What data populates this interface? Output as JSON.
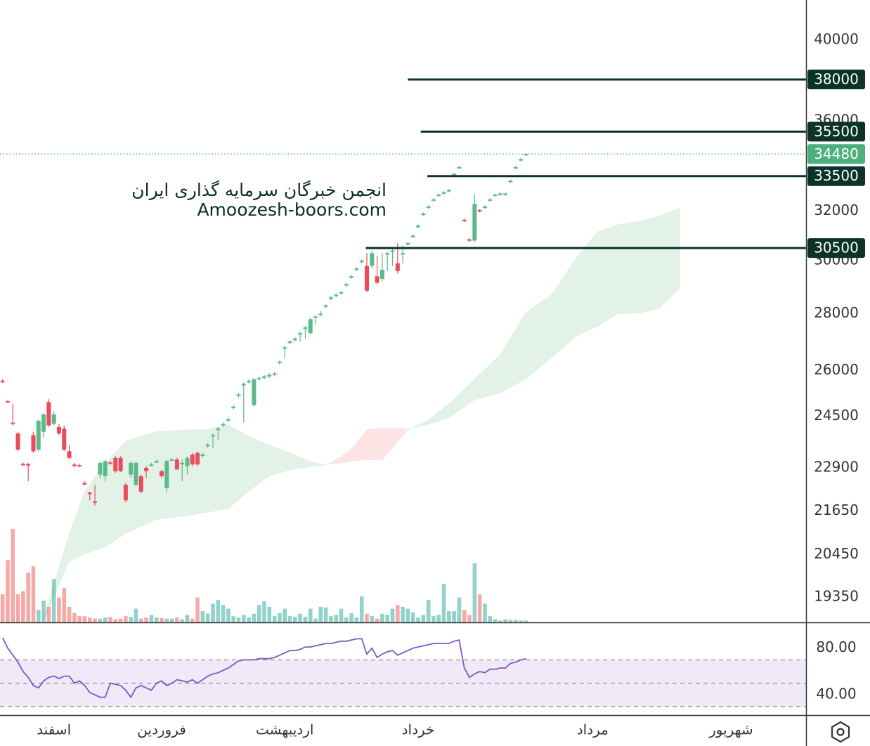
{
  "chart_data": {
    "type": "candlestick",
    "xlim": [
      -0.5,
      156.6
    ],
    "xticks": [
      {
        "value": 10,
        "label": "اسفند"
      },
      {
        "value": 31,
        "label": "فروردین"
      },
      {
        "value": 55,
        "label": "اردیبهشت"
      },
      {
        "value": 81,
        "label": "خرداد"
      },
      {
        "value": 115,
        "label": "مرداد"
      },
      {
        "value": 142,
        "label": "شهریور"
      }
    ],
    "ylim": [
      18720,
      42150
    ],
    "log_scale": true,
    "yticks": [
      19350,
      20450,
      21650,
      22900,
      24500,
      26000,
      28000,
      30000,
      32000,
      36000,
      40000
    ],
    "up_color": "#5bb98b",
    "down_color": "#ea4c5b",
    "ohlc": [
      [
        25650,
        25700,
        25580,
        25620
      ],
      [
        24980,
        25020,
        24920,
        24950
      ],
      [
        24290,
        24900,
        24200,
        24260
      ],
      [
        23950,
        24000,
        23400,
        23450
      ],
      [
        23020,
        23060,
        22950,
        23000
      ],
      [
        23010,
        23050,
        22500,
        22990
      ],
      [
        23900,
        24000,
        23350,
        23400
      ],
      [
        23450,
        24400,
        23400,
        24350
      ],
      [
        24000,
        24600,
        23800,
        24550
      ],
      [
        24950,
        25050,
        24150,
        24200
      ],
      [
        24250,
        24650,
        24200,
        24550
      ],
      [
        24150,
        24250,
        23900,
        23950
      ],
      [
        24100,
        24200,
        23400,
        23450
      ],
      [
        23400,
        23600,
        23150,
        23200
      ],
      [
        23000,
        23050,
        22900,
        22960
      ],
      [
        22980,
        23020,
        22920,
        22950
      ],
      [
        22450,
        22500,
        22380,
        22420
      ],
      [
        22170,
        22200,
        21950,
        22150
      ],
      [
        21920,
        22400,
        21800,
        21900
      ],
      [
        22700,
        23100,
        22600,
        23050
      ],
      [
        22650,
        23150,
        22500,
        23100
      ],
      [
        23060,
        23100,
        23000,
        23050
      ],
      [
        23200,
        23250,
        22750,
        22800
      ],
      [
        23200,
        23250,
        22780,
        22800
      ],
      [
        22400,
        22450,
        21900,
        21950
      ],
      [
        22700,
        23100,
        22600,
        23050
      ],
      [
        22400,
        23100,
        22350,
        23050
      ],
      [
        22650,
        22700,
        22150,
        22200
      ],
      [
        22900,
        22950,
        22600,
        22800
      ],
      [
        23000,
        23050,
        22950,
        23000
      ],
      [
        23100,
        23150,
        23050,
        23100
      ],
      [
        22800,
        22850,
        22600,
        22650
      ],
      [
        22300,
        23150,
        22200,
        23100
      ],
      [
        23150,
        23200,
        23100,
        23150
      ],
      [
        23150,
        23200,
        22850,
        22850
      ],
      [
        23000,
        23150,
        22500,
        23050
      ],
      [
        22950,
        23250,
        22700,
        23200
      ],
      [
        23300,
        23350,
        22950,
        23000
      ],
      [
        23350,
        23400,
        22950,
        23000
      ],
      [
        23280,
        23350,
        23200,
        23300
      ],
      [
        23580,
        23650,
        23500,
        23600
      ],
      [
        23880,
        23950,
        23500,
        23900
      ],
      [
        24080,
        24150,
        23750,
        24100
      ],
      [
        24230,
        24300,
        24150,
        24250
      ],
      [
        24380,
        24450,
        24300,
        24400
      ],
      [
        24780,
        24850,
        24700,
        24800
      ],
      [
        25180,
        25250,
        25100,
        25200
      ],
      [
        25530,
        25600,
        24300,
        25550
      ],
      [
        25630,
        25700,
        25550,
        25650
      ],
      [
        24850,
        25750,
        24800,
        25700
      ],
      [
        25730,
        25800,
        25650,
        25750
      ],
      [
        25780,
        25850,
        25700,
        25800
      ],
      [
        25830,
        25900,
        25750,
        25850
      ],
      [
        25880,
        25950,
        25800,
        25900
      ],
      [
        26280,
        26350,
        26200,
        26300
      ],
      [
        26780,
        26850,
        26400,
        26800
      ],
      [
        26980,
        27050,
        26900,
        27000
      ],
      [
        27080,
        27150,
        27000,
        27100
      ],
      [
        27280,
        27350,
        27000,
        27300
      ],
      [
        27480,
        27550,
        27100,
        27500
      ],
      [
        27300,
        27850,
        27250,
        27800
      ],
      [
        27880,
        27950,
        27600,
        27900
      ],
      [
        27980,
        28100,
        27900,
        28000
      ],
      [
        28280,
        28350,
        28200,
        28300
      ],
      [
        28580,
        28650,
        28500,
        28600
      ],
      [
        28680,
        28750,
        28600,
        28700
      ],
      [
        28780,
        28850,
        28700,
        28800
      ],
      [
        29080,
        29150,
        29000,
        29100
      ],
      [
        29380,
        29450,
        29300,
        29400
      ],
      [
        29680,
        29750,
        29600,
        29700
      ],
      [
        29980,
        30050,
        29900,
        30000
      ],
      [
        29800,
        30300,
        28800,
        28850
      ],
      [
        29800,
        30400,
        29700,
        30300
      ],
      [
        29400,
        30200,
        29100,
        29150
      ],
      [
        29300,
        30300,
        29200,
        29650
      ],
      [
        30280,
        30350,
        29600,
        30300
      ],
      [
        30380,
        30500,
        29800,
        30400
      ],
      [
        29900,
        30700,
        29500,
        29600
      ],
      [
        30280,
        30600,
        29900,
        30300
      ],
      [
        30680,
        30750,
        30600,
        30700
      ],
      [
        30980,
        31050,
        30900,
        31000
      ],
      [
        31380,
        31450,
        31300,
        31400
      ],
      [
        31880,
        31950,
        31800,
        31900
      ],
      [
        32180,
        32250,
        32100,
        32200
      ],
      [
        32480,
        32550,
        32400,
        32500
      ],
      [
        32680,
        32750,
        32600,
        32700
      ],
      [
        32780,
        32850,
        32700,
        32800
      ],
      [
        32880,
        32950,
        32800,
        32900
      ],
      [
        33580,
        33650,
        33500,
        33600
      ],
      [
        33880,
        33950,
        33800,
        33900
      ],
      [
        31650,
        31700,
        31550,
        31600
      ],
      [
        30850,
        30900,
        30750,
        30800
      ],
      [
        30800,
        32700,
        30750,
        32300
      ],
      [
        32050,
        32100,
        31950,
        32000
      ],
      [
        32180,
        32250,
        32100,
        32200
      ],
      [
        32480,
        32550,
        32400,
        32500
      ],
      [
        32680,
        32750,
        32600,
        32700
      ],
      [
        32730,
        32800,
        32650,
        32750
      ],
      [
        32730,
        32800,
        32650,
        32750
      ],
      [
        33280,
        33350,
        33200,
        33300
      ],
      [
        33880,
        33950,
        33800,
        33900
      ],
      [
        34230,
        34300,
        34150,
        34250
      ],
      [
        34460,
        34520,
        34400,
        34480
      ]
    ],
    "volume": {
      "ylim": [
        0,
        1000
      ],
      "up_color": "#26a69a",
      "down_color": "#ef5350",
      "values": [
        45,
        100,
        150,
        45,
        50,
        80,
        90,
        20,
        35,
        25,
        70,
        40,
        55,
        25,
        15,
        10,
        10,
        8,
        6,
        6,
        8,
        9,
        5,
        6,
        10,
        9,
        22,
        6,
        8,
        12,
        8,
        7,
        6,
        6,
        8,
        5,
        12,
        6,
        40,
        18,
        14,
        30,
        36,
        28,
        22,
        10,
        8,
        12,
        8,
        14,
        28,
        34,
        25,
        10,
        15,
        22,
        10,
        9,
        14,
        9,
        22,
        6,
        25,
        24,
        10,
        12,
        22,
        8,
        15,
        8,
        42,
        14,
        10,
        6,
        14,
        12,
        22,
        28,
        25,
        22,
        16,
        8,
        12,
        36,
        10,
        12,
        62,
        18,
        18,
        40,
        20,
        12,
        95,
        45,
        30,
        10,
        5,
        3,
        5,
        4,
        4,
        3,
        3
      ]
    },
    "cloud": {
      "up_color": "#e3f2e6",
      "down_color": "#fde4e4",
      "x": [
        8,
        13,
        16,
        20,
        24,
        30,
        36,
        40,
        44,
        48,
        52,
        56,
        60,
        63,
        66,
        68,
        71,
        74,
        79,
        83,
        87,
        92,
        97,
        102,
        107,
        112,
        116,
        120,
        124,
        128,
        132
      ],
      "span_a": [
        18840,
        21020,
        22210,
        23040,
        23720,
        24010,
        24070,
        24070,
        24230,
        23860,
        23590,
        23360,
        23080,
        23000,
        23040,
        23100,
        23140,
        23140,
        24070,
        24380,
        24900,
        25710,
        26550,
        28050,
        28700,
        30180,
        31160,
        31450,
        31590,
        31800,
        32140
      ],
      "span_b": [
        18750,
        20270,
        20460,
        20650,
        21020,
        21410,
        21510,
        21610,
        21710,
        22210,
        22660,
        22830,
        22930,
        22980,
        23250,
        23460,
        24070,
        24120,
        24100,
        24230,
        24450,
        25020,
        25250,
        25710,
        26430,
        27210,
        27540,
        28000,
        28020,
        28180,
        28960
      ]
    },
    "levels": [
      {
        "value": 38000,
        "start": 79
      },
      {
        "value": 35500,
        "start": 81.5
      },
      {
        "value": 33500,
        "start": 82.8
      },
      {
        "value": 30500,
        "start": 70.8
      }
    ],
    "level_color": "#0b3328",
    "last_price": {
      "value": 34480,
      "color": "#4caf7d"
    },
    "watermark": [
      "انجمن خبرگان سرمایه گذاری ایران",
      "Amoozesh-boors.com"
    ],
    "rsi": {
      "color": "#7e57c2",
      "band_color": "#efe9f8",
      "ylim": [
        22.7,
        101.5
      ],
      "band": [
        30,
        70
      ],
      "levels": [
        30,
        50,
        70
      ],
      "yticks": [
        {
          "value": 40,
          "label": "40.00"
        },
        {
          "value": 80,
          "label": "80.00"
        }
      ],
      "values": [
        89,
        80,
        74,
        68,
        60,
        55,
        48,
        46,
        52,
        55,
        56,
        54,
        56,
        56,
        50,
        52,
        48,
        42,
        40,
        38,
        38,
        50,
        49,
        48,
        44,
        38,
        46,
        48,
        46,
        44,
        50,
        52,
        48,
        50,
        53,
        52,
        51,
        53,
        50,
        53,
        56,
        58,
        59,
        61,
        63,
        66,
        69,
        70,
        70,
        70,
        71,
        71,
        71,
        72,
        74,
        76,
        78,
        78,
        79,
        81,
        81,
        82,
        83,
        84,
        84,
        85,
        86,
        86,
        87,
        88,
        88,
        75,
        80,
        72,
        75,
        77,
        78,
        74,
        76,
        78,
        80,
        81,
        82,
        83,
        84,
        84,
        84,
        84,
        86,
        87,
        63,
        55,
        58,
        60,
        59,
        62,
        62,
        63,
        63,
        67,
        68,
        70,
        71
      ]
    }
  }
}
